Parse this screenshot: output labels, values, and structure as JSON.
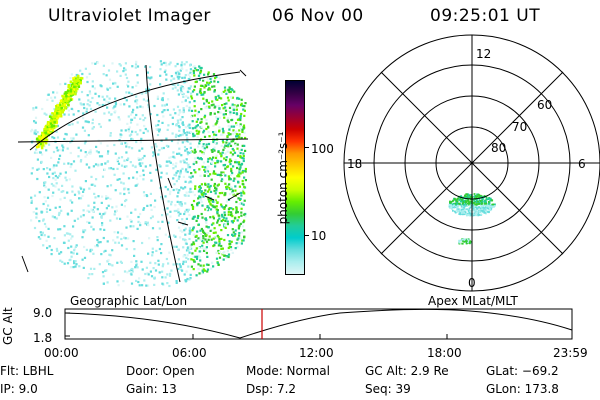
{
  "header": {
    "instrument": "Ultraviolet Imager",
    "date": "06 Nov 00",
    "time": "09:25:01 UT"
  },
  "colorbar": {
    "unit_label": "photon cm⁻²s⁻¹",
    "ticks": [
      "100",
      "10"
    ],
    "colors": [
      "#000033",
      "#330044",
      "#660066",
      "#990033",
      "#cc0000",
      "#ff3300",
      "#ff9900",
      "#ffcc00",
      "#ffff00",
      "#ccff00",
      "#66ee00",
      "#33cc33",
      "#22cc99",
      "#00cccc",
      "#66dddd",
      "#aaeeee",
      "#ddf6f6"
    ]
  },
  "polar_plot": {
    "mlt_labels": {
      "top": "12",
      "left": "18",
      "right": "6",
      "bottom": "0"
    },
    "lat_labels": [
      "60",
      "70",
      "80"
    ]
  },
  "altitude_plot": {
    "left_title": "Geographic Lat/Lon",
    "right_title": "Apex MLat/MLT",
    "ylabel": "GC Alt",
    "yticks": [
      "9.0",
      "1.8"
    ],
    "xticks": [
      "00:00",
      "06:00",
      "12:00",
      "18:00",
      "23:59"
    ],
    "marker_color": "#cc0000"
  },
  "info": {
    "flt": "Flt:  LBHL",
    "ip": "IP:   9.0",
    "door": "Door:  Open",
    "gain": "Gain:  13",
    "mode": "Mode:  Normal",
    "dsp": "Dsp:      7.2",
    "gcalt": "GC Alt:  2.9 Re",
    "seq": "Seq:  39",
    "glat": "GLat:  −69.2",
    "glon": "GLon:  173.8"
  }
}
